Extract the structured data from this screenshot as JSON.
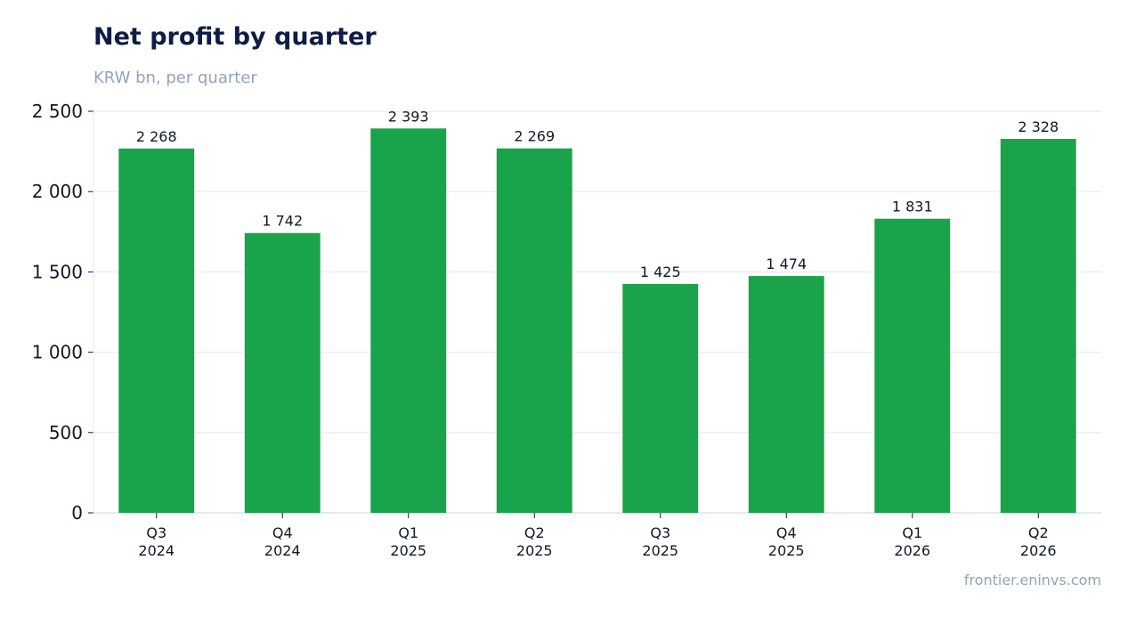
{
  "title": "Net profit by quarter",
  "subtitle": "KRW bn, per quarter",
  "source": "frontier.eninvs.com",
  "colors": {
    "bar": "#19a34a",
    "grid": "#e2e8f0",
    "axis": "#cbd5e1",
    "text": "#111827"
  },
  "chart_data": {
    "type": "bar",
    "title": "Net profit by quarter",
    "subtitle": "KRW bn, per quarter",
    "categories": [
      [
        "Q3",
        "2024"
      ],
      [
        "Q4",
        "2024"
      ],
      [
        "Q1",
        "2025"
      ],
      [
        "Q2",
        "2025"
      ],
      [
        "Q3",
        "2025"
      ],
      [
        "Q4",
        "2025"
      ],
      [
        "Q1",
        "2026"
      ],
      [
        "Q2",
        "2026"
      ]
    ],
    "values": [
      2268,
      1742,
      2393,
      2269,
      1425,
      1474,
      1831,
      2328
    ],
    "data_labels": [
      "2 268",
      "1 742",
      "2 393",
      "2 269",
      "1 425",
      "1 474",
      "1 831",
      "2 328"
    ],
    "yticks": [
      0,
      500,
      1000,
      1500,
      2000,
      2500
    ],
    "ytick_labels": [
      "0",
      "500",
      "1 000",
      "1 500",
      "2 000",
      "2 500"
    ],
    "ylim": [
      0,
      2500
    ],
    "grid": true,
    "legend": "none"
  }
}
